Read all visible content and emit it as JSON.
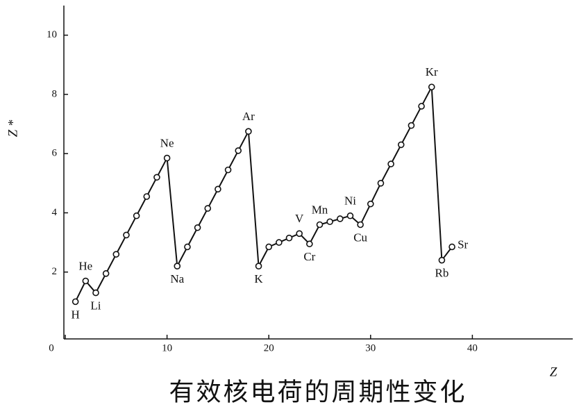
{
  "chart_data": {
    "type": "line",
    "title": "有效核电荷的周期性变化",
    "x_label": "Z",
    "y_label": "Z *",
    "x": [
      1,
      2,
      3,
      4,
      5,
      6,
      7,
      8,
      9,
      10,
      11,
      12,
      13,
      14,
      15,
      16,
      17,
      18,
      19,
      20,
      21,
      22,
      23,
      24,
      25,
      26,
      27,
      28,
      29,
      30,
      31,
      32,
      33,
      34,
      35,
      36,
      37,
      38
    ],
    "series": [
      {
        "color": "#111111",
        "values": [
          1.0,
          1.7,
          1.3,
          1.95,
          2.6,
          3.25,
          3.9,
          4.55,
          5.2,
          5.85,
          2.2,
          2.85,
          3.5,
          4.15,
          4.8,
          5.45,
          6.1,
          6.75,
          2.2,
          2.85,
          3.0,
          3.15,
          3.3,
          2.95,
          3.6,
          3.7,
          3.8,
          3.9,
          3.6,
          4.3,
          5.0,
          5.65,
          6.3,
          6.95,
          7.6,
          8.25,
          2.4,
          2.85
        ]
      }
    ],
    "point_labels": [
      "H",
      "He",
      "Li",
      null,
      null,
      null,
      null,
      null,
      null,
      "Ne",
      "Na",
      null,
      null,
      null,
      null,
      null,
      null,
      "Ar",
      "K",
      null,
      null,
      null,
      "V",
      "Cr",
      "Mn",
      null,
      null,
      "Ni",
      "Cu",
      null,
      null,
      null,
      null,
      null,
      null,
      "Kr",
      "Rb",
      "Sr"
    ],
    "xlim": [
      0,
      50
    ],
    "ylim": [
      0,
      11
    ],
    "xticks": [
      0,
      10,
      20,
      30,
      40
    ],
    "yticks": [
      2,
      4,
      6,
      8,
      10
    ]
  }
}
